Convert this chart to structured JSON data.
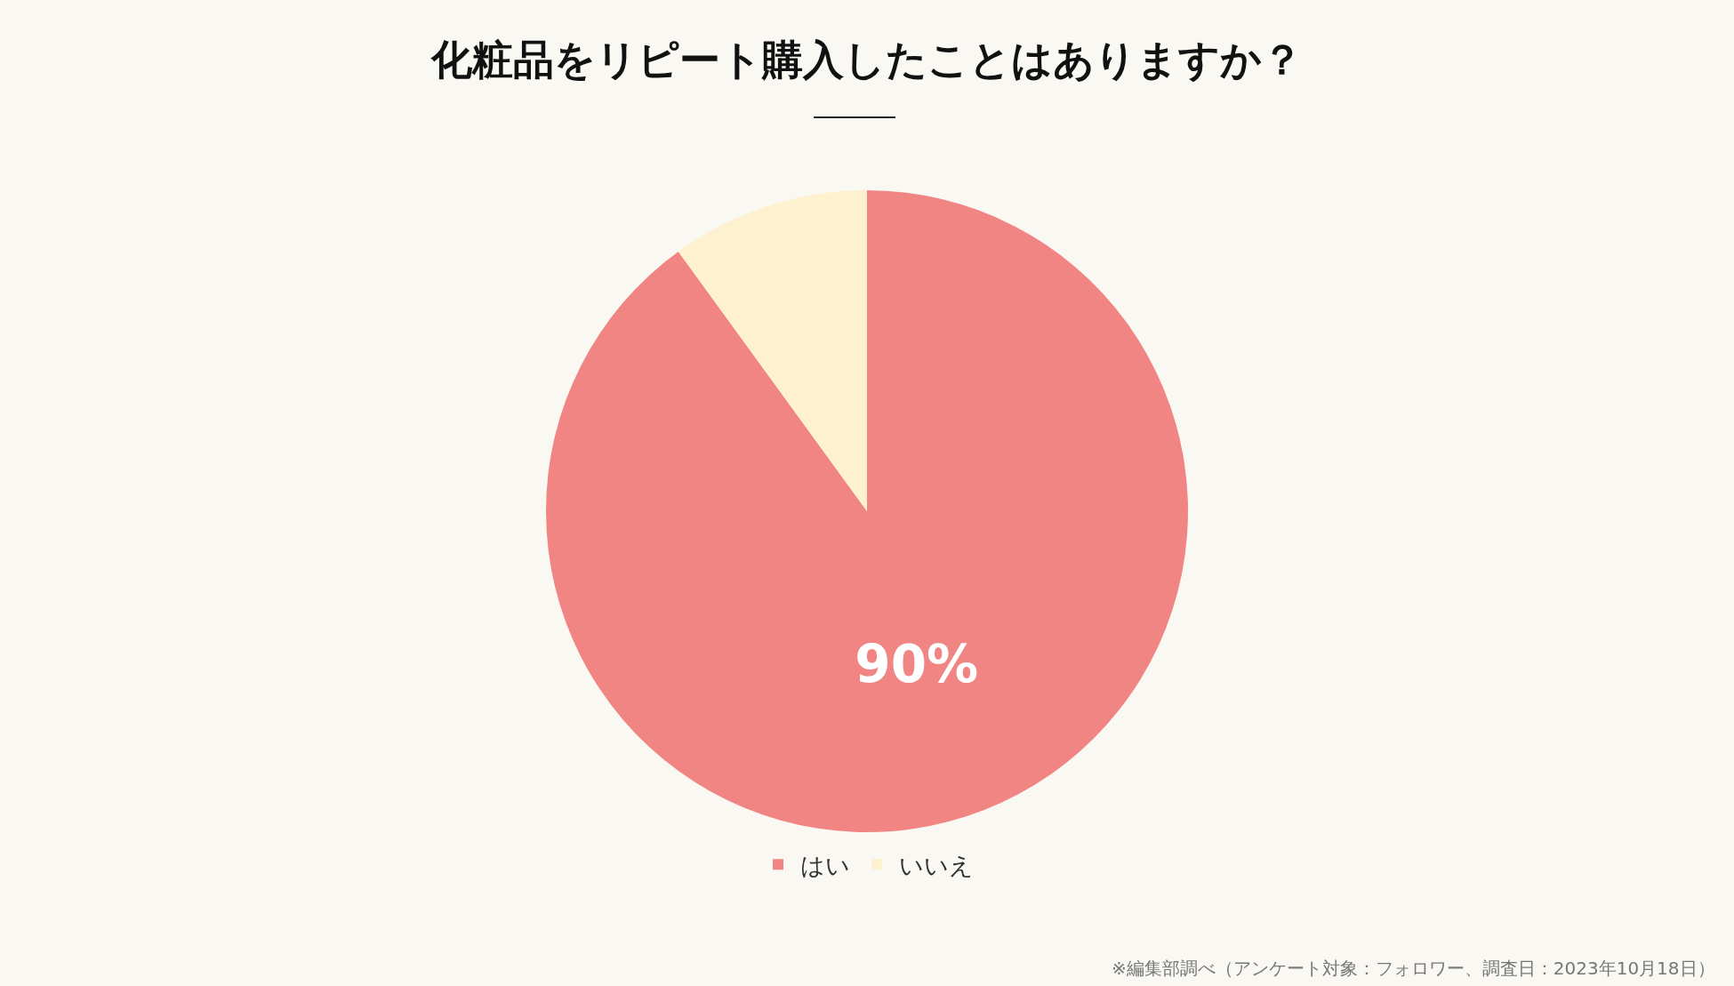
{
  "chart_data": {
    "type": "pie",
    "title": "化粧品をリピート購入したことはありますか？",
    "categories": [
      "はい",
      "いいえ"
    ],
    "values": [
      90,
      10
    ],
    "colors": [
      "#f08584",
      "#fef1d0"
    ],
    "value_labels": [
      "90%",
      null
    ],
    "legend": "bottom",
    "annotations": [
      "※編集部調べ（アンケート対象：フォロワー、調査日：2023年10月18日）"
    ]
  }
}
